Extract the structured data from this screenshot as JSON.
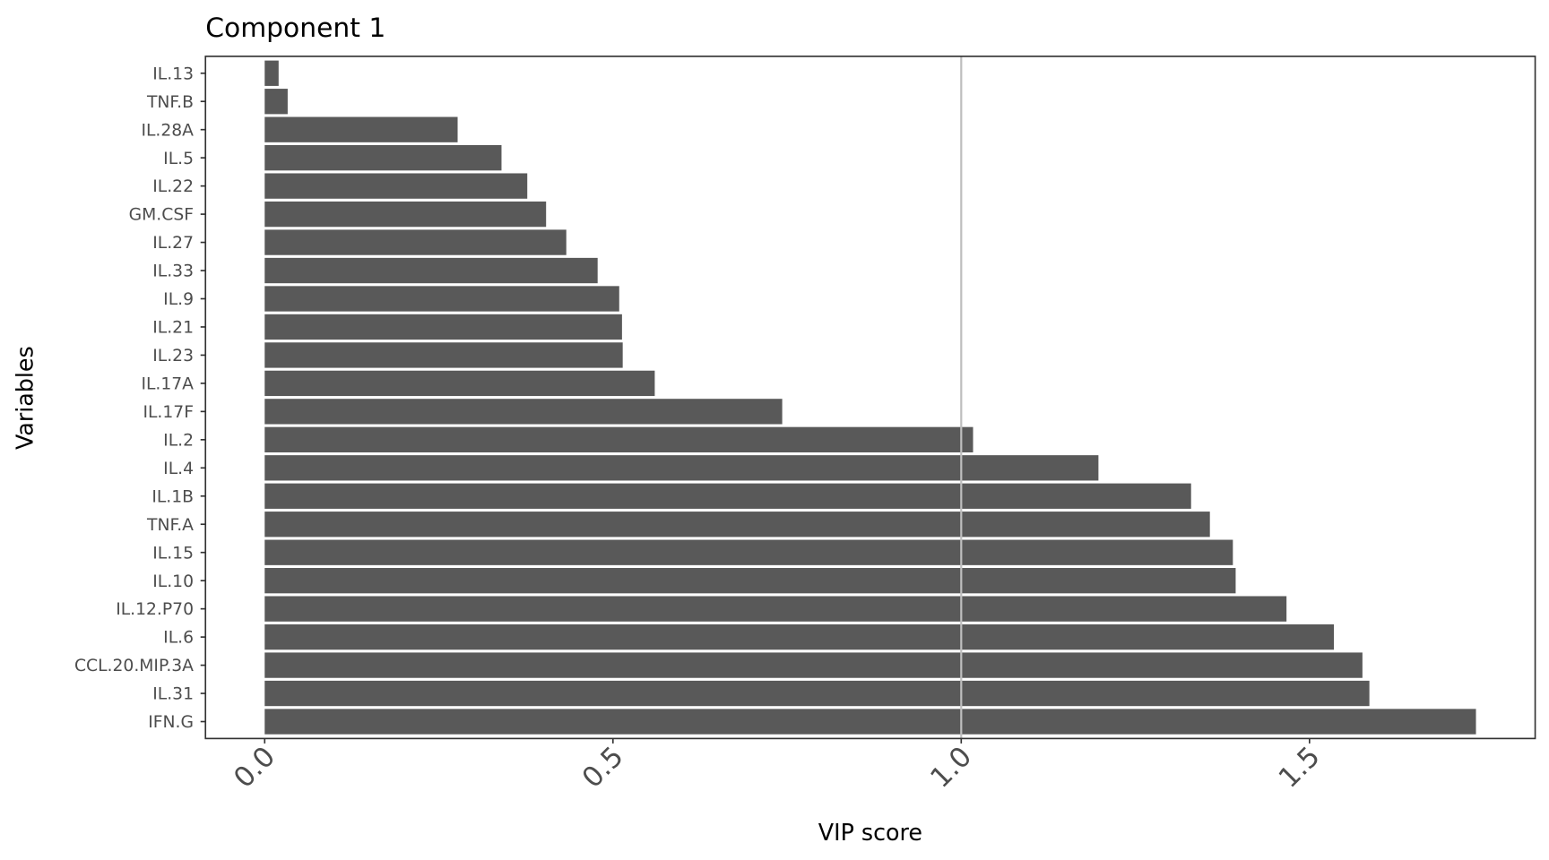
{
  "chart_data": {
    "type": "bar",
    "orientation": "horizontal",
    "title": "Component 1",
    "xlabel": "VIP score",
    "ylabel": "Variables",
    "xlim": [
      -0.085,
      1.824
    ],
    "xticks": [
      "0.0",
      "0.5",
      "1.0",
      "1.5"
    ],
    "xtick_values": [
      0,
      0.5,
      1.0,
      1.5
    ],
    "reference_line": 1.0,
    "grid": false,
    "bar_color": "#595959",
    "reference_line_color": "#bebebe",
    "categories": [
      "IL.13",
      "TNF.B",
      "IL.28A",
      "IL.5",
      "IL.22",
      "GM.CSF",
      "IL.27",
      "IL.33",
      "IL.9",
      "IL.21",
      "IL.23",
      "IL.17A",
      "IL.17F",
      "IL.2",
      "IL.4",
      "IL.1B",
      "TNF.A",
      "IL.15",
      "IL.10",
      "IL.12.P70",
      "IL.6",
      "CCL.20.MIP.3A",
      "IL.31",
      "IFN.G"
    ],
    "values": [
      0.02,
      0.033,
      0.277,
      0.34,
      0.377,
      0.404,
      0.433,
      0.478,
      0.509,
      0.513,
      0.514,
      0.56,
      0.743,
      1.017,
      1.197,
      1.33,
      1.357,
      1.39,
      1.394,
      1.467,
      1.535,
      1.576,
      1.586,
      1.739
    ]
  }
}
